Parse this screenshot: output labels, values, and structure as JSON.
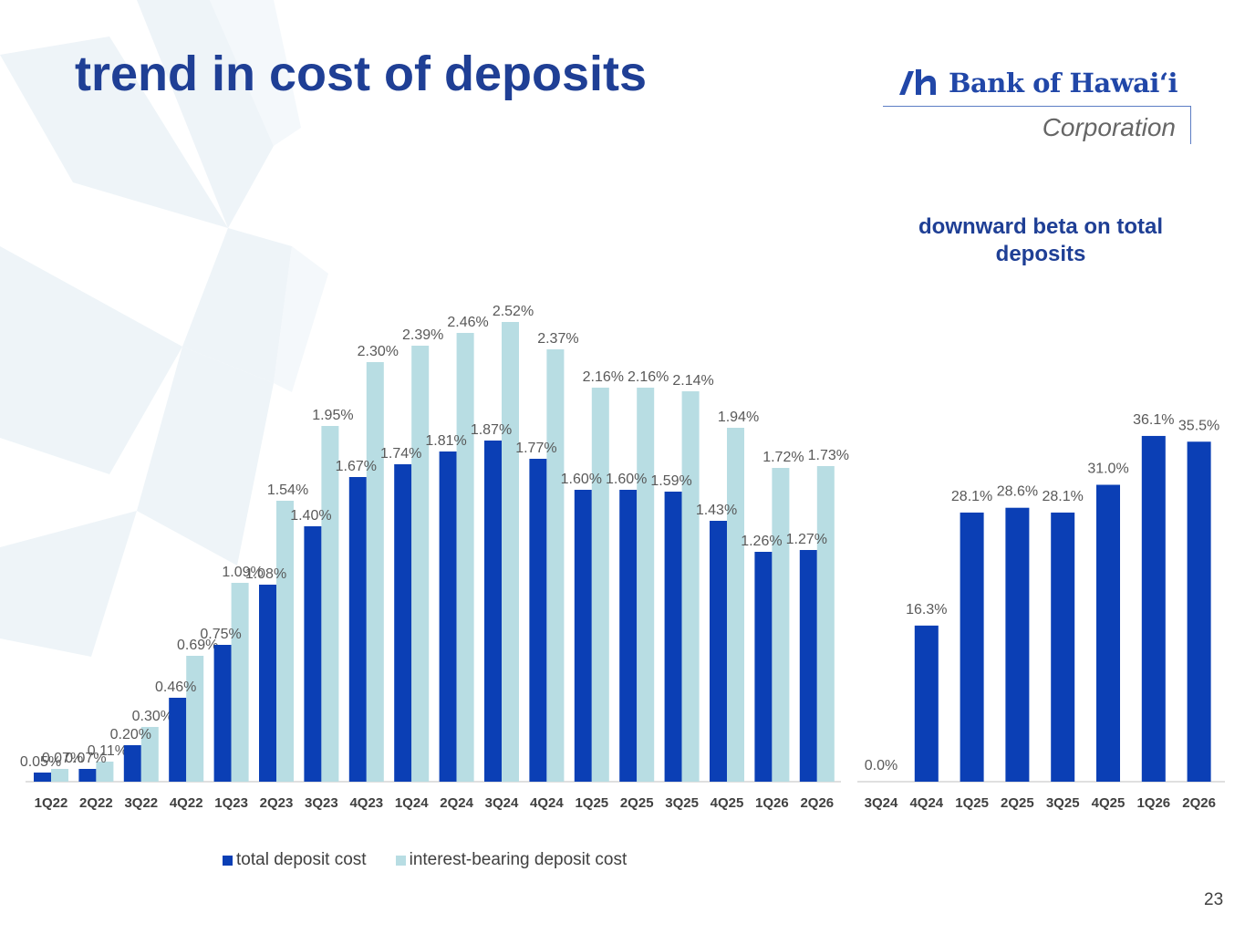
{
  "page": {
    "title": "trend in cost of deposits",
    "page_number": "23"
  },
  "logo": {
    "name": "Bank of Hawaiʻi",
    "subtitle": "Corporation"
  },
  "colors": {
    "title": "#1F3F95",
    "total_deposit_cost": "#0B3FB5",
    "interest_bearing_cost": "#B8DDE3",
    "beta_bar": "#0B3FB5"
  },
  "chart_data": [
    {
      "type": "bar",
      "title": "",
      "categories": [
        "1Q22",
        "2Q22",
        "3Q22",
        "4Q22",
        "1Q23",
        "2Q23",
        "3Q23",
        "4Q23",
        "1Q24",
        "2Q24",
        "3Q24",
        "4Q24",
        "1Q25",
        "2Q25",
        "3Q25",
        "4Q25",
        "1Q26",
        "2Q26"
      ],
      "series": [
        {
          "name": "total deposit cost",
          "values": [
            0.05,
            0.07,
            0.2,
            0.46,
            0.75,
            1.08,
            1.4,
            1.67,
            1.74,
            1.81,
            1.87,
            1.77,
            1.6,
            1.6,
            1.59,
            1.43,
            1.26,
            1.27
          ],
          "labels": [
            "0.05%",
            "0.07%",
            "0.20%",
            "0.46%",
            "0.75%",
            "1.08%",
            "1.40%",
            "1.67%",
            "1.74%",
            "1.81%",
            "1.87%",
            "1.77%",
            "1.60%",
            "1.60%",
            "1.59%",
            "1.43%",
            "1.26%",
            "1.27%"
          ]
        },
        {
          "name": "interest-bearing deposit cost",
          "values": [
            0.07,
            0.11,
            0.3,
            0.69,
            1.09,
            1.54,
            1.95,
            2.3,
            2.39,
            2.46,
            2.52,
            2.37,
            2.16,
            2.16,
            2.14,
            1.94,
            1.72,
            1.73
          ],
          "labels": [
            "0.07%",
            "0.11%",
            "0.30%",
            "0.69%",
            "1.09%",
            "1.54%",
            "1.95%",
            "2.30%",
            "2.39%",
            "2.46%",
            "2.52%",
            "2.37%",
            "2.16%",
            "2.16%",
            "2.14%",
            "1.94%",
            "1.72%",
            "1.73%"
          ]
        }
      ],
      "xlabel": "",
      "ylabel": "",
      "ylim": [
        0,
        2.6
      ],
      "grid": false,
      "legend_position": "bottom"
    },
    {
      "type": "bar",
      "title": "downward beta on total deposits",
      "categories": [
        "3Q24",
        "4Q24",
        "1Q25",
        "2Q25",
        "3Q25",
        "4Q25",
        "1Q26",
        "2Q26"
      ],
      "series": [
        {
          "name": "",
          "values": [
            0.0,
            16.3,
            28.1,
            28.6,
            28.1,
            31.0,
            36.1,
            35.5
          ],
          "labels": [
            "0.0%",
            "16.3%",
            "28.1%",
            "28.6%",
            "28.1%",
            "31.0%",
            "36.1%",
            "35.5%"
          ]
        }
      ],
      "xlabel": "",
      "ylabel": "",
      "ylim": [
        0,
        39
      ],
      "grid": false
    }
  ]
}
